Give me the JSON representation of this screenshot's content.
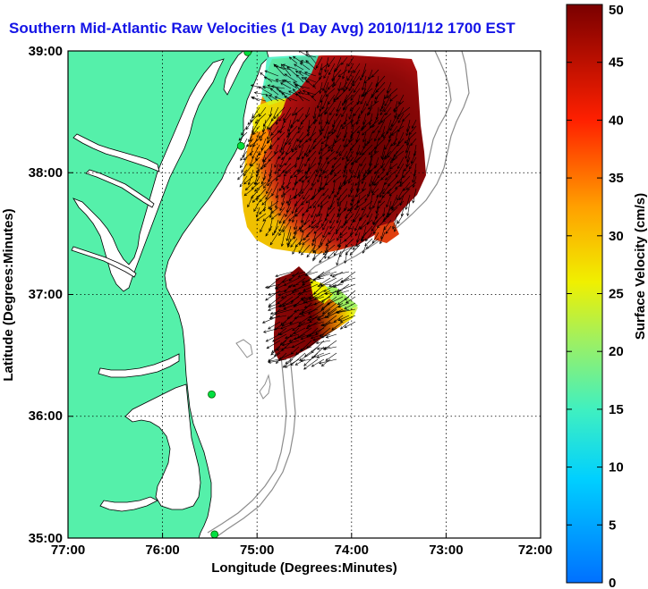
{
  "title": "Southern Mid-Atlantic Raw Velocities (1 Day Avg) 2010/11/12 1700 EST",
  "xlabel": "Longitude (Degrees:Minutes)",
  "ylabel": "Latitude (Degrees:Minutes)",
  "colorbar": {
    "label": "Surface Velocity (cm/s)",
    "ticks": [
      "0",
      "5",
      "10",
      "15",
      "20",
      "25",
      "30",
      "35",
      "40",
      "45",
      "50"
    ],
    "range": [
      0,
      50
    ]
  },
  "x_ticks": [
    "77:00",
    "76:00",
    "75:00",
    "74:00",
    "73:00",
    "72:00"
  ],
  "y_ticks": [
    "39:00",
    "38:00",
    "37:00",
    "36:00",
    "35:00"
  ],
  "x_range_deg": [
    -77,
    -72
  ],
  "y_range_deg": [
    35,
    39
  ],
  "colors": {
    "land": "#55f0aa",
    "coast": "#000000",
    "isobath": "#8c8c8c",
    "grid": "#000000",
    "title": "#1414e6",
    "station": "#00e040"
  },
  "chart_data": {
    "type": "vector-field-map",
    "region": "Southern Mid-Atlantic",
    "averaging": "1 Day Avg",
    "timestamp": "2010/11/12 1700 EST",
    "units": "cm/s",
    "grid": true,
    "stations": [
      {
        "lon": -75.1,
        "lat": 38.99
      },
      {
        "lon": -75.17,
        "lat": 38.22
      },
      {
        "lon": -75.48,
        "lat": 36.18
      },
      {
        "lon": -75.45,
        "lat": 35.03
      }
    ]
  }
}
